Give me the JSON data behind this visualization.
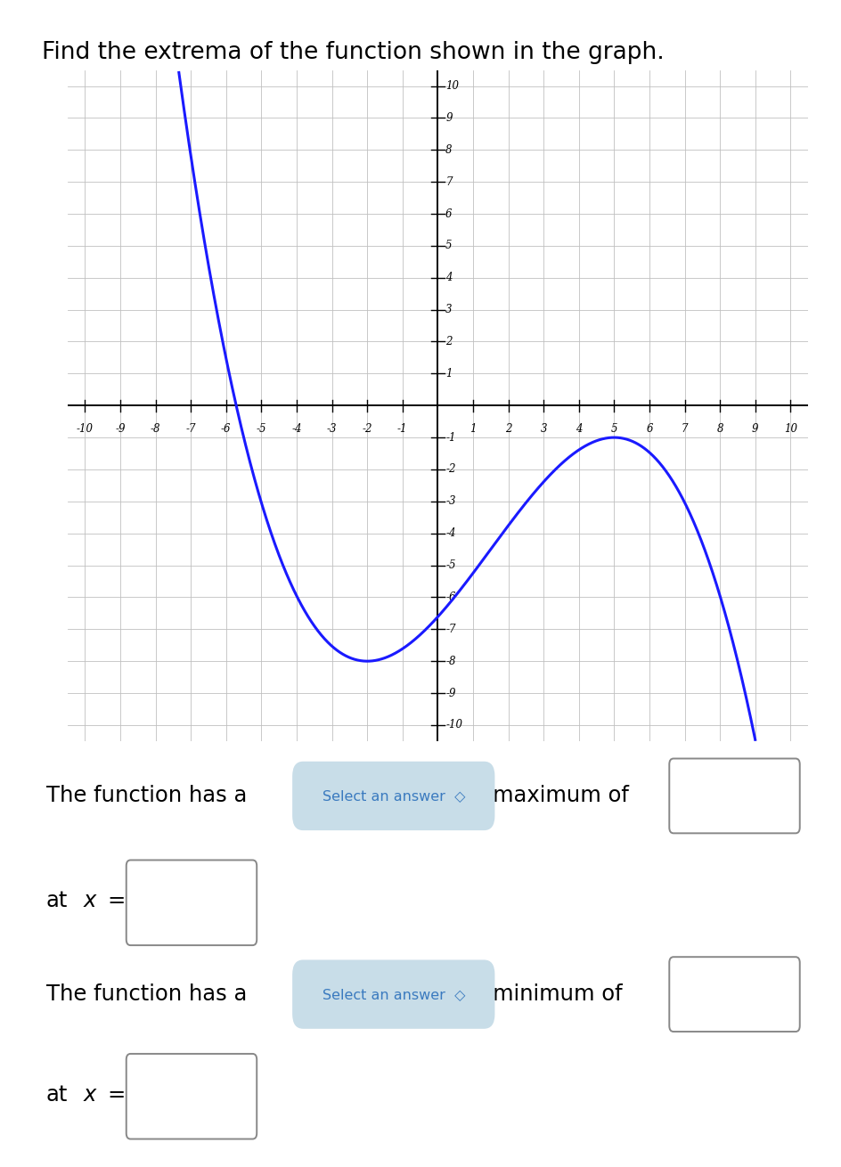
{
  "title": "Find the extrema of the function shown in the graph.",
  "title_fontsize": 19,
  "xlim": [
    -10.5,
    10.5
  ],
  "ylim": [
    -10.5,
    10.5
  ],
  "xtick_vals": [
    -10,
    -9,
    -8,
    -7,
    -6,
    -5,
    -4,
    -3,
    -2,
    -1,
    1,
    2,
    3,
    4,
    5,
    6,
    7,
    8,
    9,
    10
  ],
  "ytick_vals": [
    -10,
    -9,
    -8,
    -7,
    -6,
    -5,
    -4,
    -3,
    -2,
    -1,
    1,
    2,
    3,
    4,
    5,
    6,
    7,
    8,
    9,
    10
  ],
  "curve_color": "#1a1aff",
  "curve_lw": 2.2,
  "background": "#ffffff",
  "grid_color": "#c0c0c0",
  "axis_color": "#000000",
  "select_bg": "#c8dde8",
  "select_fg": "#3a7abf",
  "a": -0.04081632653061224,
  "b": 0.18367346938775508,
  "c": 1.2244897959183674,
  "d": -6.612244897959184
}
